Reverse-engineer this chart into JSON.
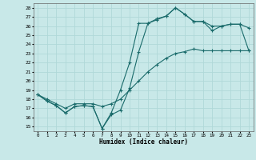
{
  "xlabel": "Humidex (Indice chaleur)",
  "xlim": [
    -0.5,
    23.5
  ],
  "ylim": [
    14.5,
    28.5
  ],
  "xticks": [
    0,
    1,
    2,
    3,
    4,
    5,
    6,
    7,
    8,
    9,
    10,
    11,
    12,
    13,
    14,
    15,
    16,
    17,
    18,
    19,
    20,
    21,
    22,
    23
  ],
  "yticks": [
    15,
    16,
    17,
    18,
    19,
    20,
    21,
    22,
    23,
    24,
    25,
    26,
    27,
    28
  ],
  "bg_color": "#c8e8e8",
  "line_color": "#1a6b6b",
  "grid_color": "#b0d8d8",
  "line1_x": [
    0,
    1,
    2,
    3,
    4,
    5,
    6,
    7,
    8,
    9,
    10,
    11,
    12,
    13,
    14,
    15,
    16,
    17,
    18,
    19,
    20,
    21,
    22,
    23
  ],
  "line1_y": [
    18.5,
    17.8,
    17.3,
    16.5,
    17.2,
    17.3,
    17.2,
    14.8,
    16.3,
    16.8,
    19.2,
    23.2,
    26.3,
    26.7,
    27.1,
    28.0,
    27.3,
    26.5,
    26.5,
    26.0,
    26.0,
    26.2,
    26.2,
    25.8
  ],
  "line2_x": [
    0,
    1,
    2,
    3,
    4,
    5,
    6,
    7,
    8,
    9,
    10,
    11,
    12,
    13,
    14,
    15,
    16,
    17,
    18,
    19,
    20,
    21,
    22,
    23
  ],
  "line2_y": [
    18.5,
    18.0,
    17.5,
    17.0,
    17.5,
    17.5,
    17.5,
    17.2,
    17.5,
    18.0,
    19.0,
    20.0,
    21.0,
    21.8,
    22.5,
    23.0,
    23.2,
    23.5,
    23.3,
    23.3,
    23.3,
    23.3,
    23.3,
    23.3
  ],
  "line3_x": [
    0,
    1,
    2,
    3,
    4,
    5,
    6,
    7,
    8,
    9,
    10,
    11,
    12,
    13,
    14,
    15,
    16,
    17,
    18,
    19,
    20,
    21,
    22,
    23
  ],
  "line3_y": [
    18.5,
    17.8,
    17.3,
    16.5,
    17.2,
    17.3,
    17.2,
    14.8,
    16.5,
    19.0,
    22.0,
    26.3,
    26.3,
    26.8,
    27.1,
    28.0,
    27.3,
    26.5,
    26.5,
    25.5,
    26.0,
    26.2,
    26.2,
    23.3
  ]
}
